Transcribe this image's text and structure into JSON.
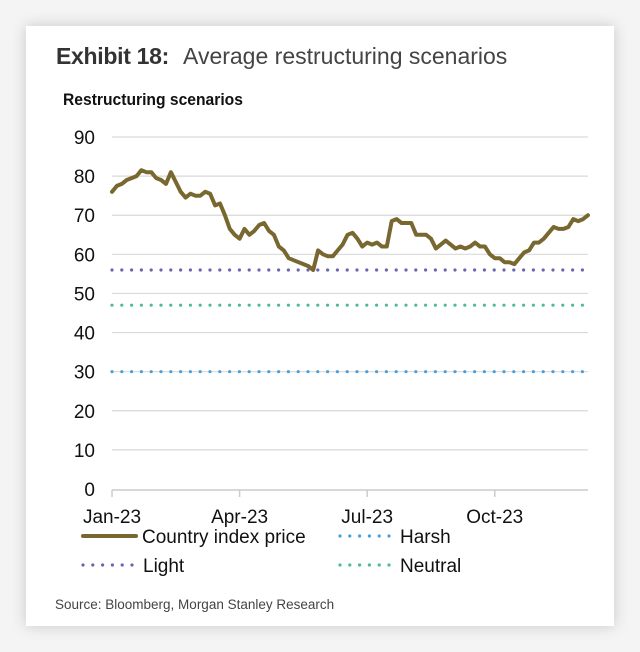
{
  "exhibit_label": "Exhibit 18:",
  "exhibit_title": "Average restructuring scenarios",
  "source": "Source: Bloomberg, Morgan Stanley Research",
  "colors": {
    "country_index": "#786830",
    "harsh": "#4a9fd8",
    "light": "#6b64b4",
    "neutral": "#4dbb90",
    "grid": "#d9d9d9",
    "axis": "#cccccc"
  },
  "chart_data": {
    "type": "line",
    "title": "Restructuring scenarios",
    "xlabel": "",
    "ylabel": "",
    "ylim": [
      0,
      90
    ],
    "yticks": [
      0,
      10,
      20,
      30,
      40,
      50,
      60,
      70,
      80,
      90
    ],
    "xtick_labels": [
      "Jan-23",
      "Apr-23",
      "Jul-23",
      "Oct-23"
    ],
    "xtick_weeks": [
      0,
      13,
      26,
      39
    ],
    "x_range_weeks": [
      0,
      48.5
    ],
    "grid": true,
    "legend_position": "bottom",
    "series": [
      {
        "name": "Country index price",
        "style": "solid",
        "x_weeks": [
          0,
          0.5,
          1,
          1.5,
          2,
          2.5,
          3,
          3.5,
          4,
          4.5,
          5,
          5.5,
          6,
          6.5,
          7,
          7.5,
          8,
          8.5,
          9,
          9.5,
          10,
          10.5,
          11,
          11.5,
          12,
          12.5,
          13,
          13.5,
          14,
          14.5,
          15,
          15.5,
          16,
          16.5,
          17,
          17.5,
          18,
          18.5,
          19,
          19.5,
          20,
          20.5,
          21,
          21.5,
          22,
          22.5,
          23,
          23.5,
          24,
          24.5,
          25,
          25.5,
          26,
          26.5,
          27,
          27.5,
          28,
          28.5,
          29,
          29.5,
          30,
          30.5,
          31,
          31.5,
          32,
          32.5,
          33,
          33.5,
          34,
          34.5,
          35,
          35.5,
          36,
          36.5,
          37,
          37.5,
          38,
          38.5,
          39,
          39.5,
          40,
          40.5,
          41,
          41.5,
          42,
          42.5,
          43,
          43.5,
          44,
          44.5,
          45,
          45.5,
          46,
          46.5,
          47,
          47.5,
          48,
          48.5
        ],
        "values": [
          76,
          77.5,
          78,
          79,
          79.5,
          80,
          81.5,
          81,
          81,
          79.5,
          79,
          78,
          81,
          78.5,
          76,
          74.5,
          75.5,
          75,
          75,
          76,
          75.5,
          72.5,
          73,
          70,
          66.5,
          65,
          64,
          66.5,
          65,
          66,
          67.5,
          68,
          66,
          65,
          62,
          61,
          59,
          58.5,
          58,
          57.5,
          57,
          56,
          61,
          60,
          59.5,
          59.5,
          61,
          62.5,
          65,
          65.5,
          64,
          62,
          63,
          62.5,
          63,
          62,
          62,
          68.5,
          69,
          68,
          68,
          68,
          65,
          65,
          65,
          64,
          61.5,
          62.5,
          63.5,
          62.5,
          61.5,
          62,
          61.5,
          62,
          63,
          62,
          62,
          60,
          59,
          59,
          58,
          58,
          57.5,
          59,
          60.5,
          61,
          63,
          63,
          64,
          65.5,
          67,
          66.5,
          66.5,
          67,
          69,
          68.5,
          69,
          70
        ]
      },
      {
        "name": "Harsh",
        "style": "dotted",
        "value": 30
      },
      {
        "name": "Light",
        "style": "dotted",
        "value": 56
      },
      {
        "name": "Neutral",
        "style": "dotted",
        "value": 47
      }
    ],
    "legend": [
      {
        "label": "Country index price",
        "series": "country_index"
      },
      {
        "label": "Harsh",
        "series": "harsh"
      },
      {
        "label": "Light",
        "series": "light"
      },
      {
        "label": "Neutral",
        "series": "neutral"
      }
    ]
  }
}
